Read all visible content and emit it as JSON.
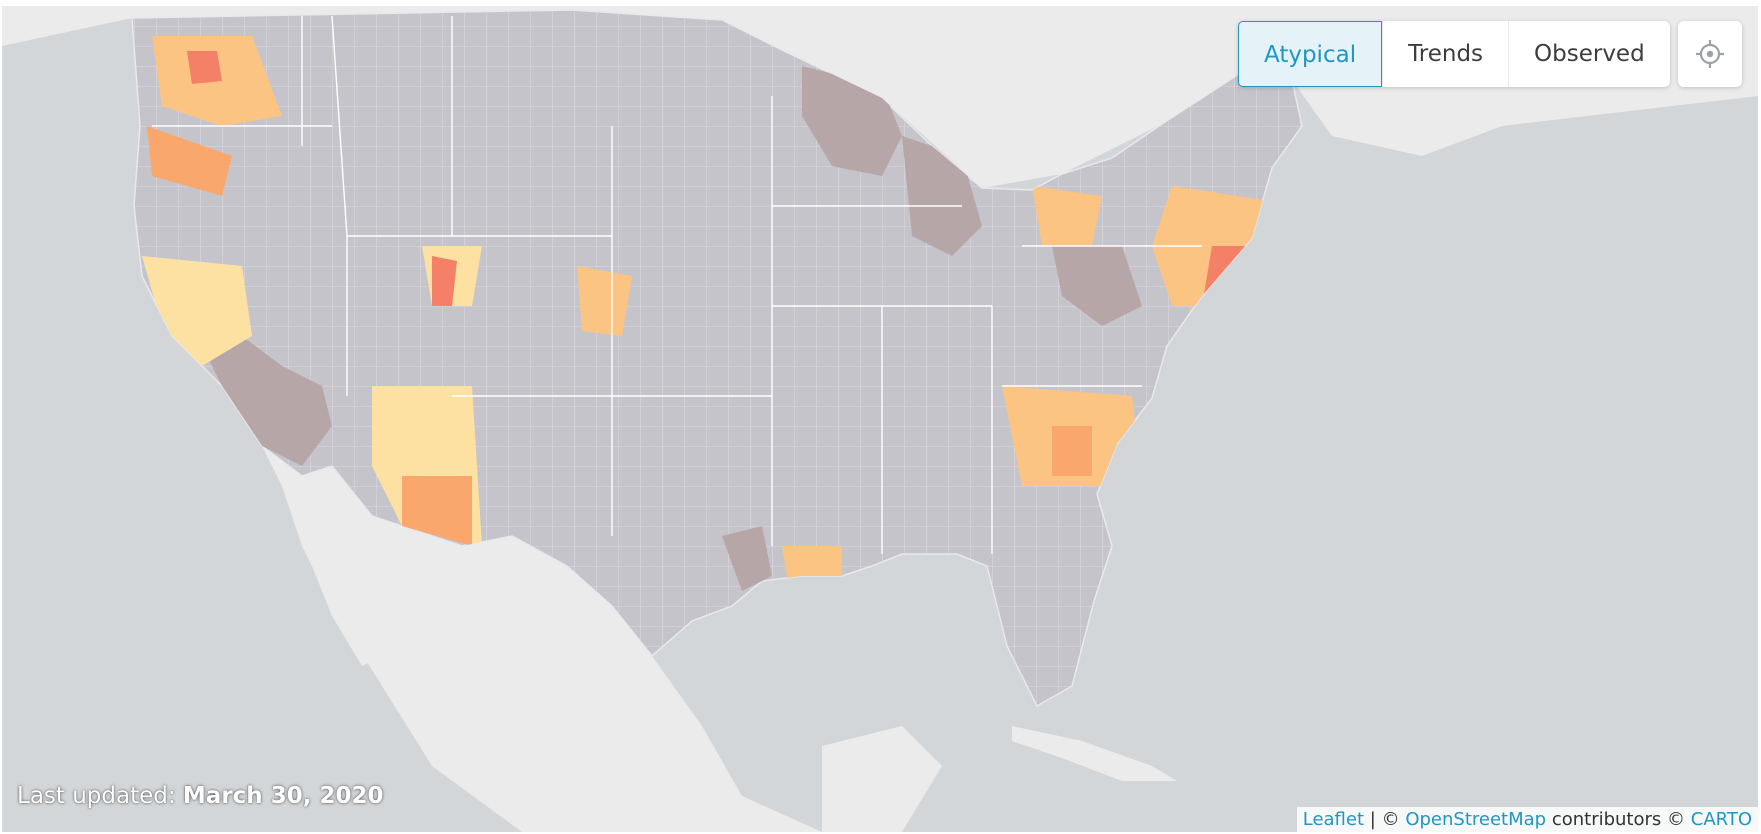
{
  "mode_buttons": {
    "atypical": "Atypical",
    "trends": "Trends",
    "observed": "Observed",
    "active": "atypical"
  },
  "locate_button": {
    "icon": "crosshair-icon"
  },
  "last_updated": {
    "label": "Last updated:",
    "date": "March 30, 2020"
  },
  "attribution": {
    "leaflet": "Leaflet",
    "separator": "|",
    "copyright1": "©",
    "openstreetmap": "OpenStreetMap",
    "contributors": "contributors",
    "copyright2": "©",
    "carto": "CARTO"
  },
  "map": {
    "basemap": "light-gray",
    "water_color": "#d3d6d8",
    "land_color": "#ebebeb",
    "county_default_color": "#c6c4cb",
    "choropleth_scale": [
      "#b6a6a8",
      "#c6c4cb",
      "#fde1a2",
      "#fbc483",
      "#f9a76d",
      "#f48068",
      "#ea5f6d"
    ]
  }
}
